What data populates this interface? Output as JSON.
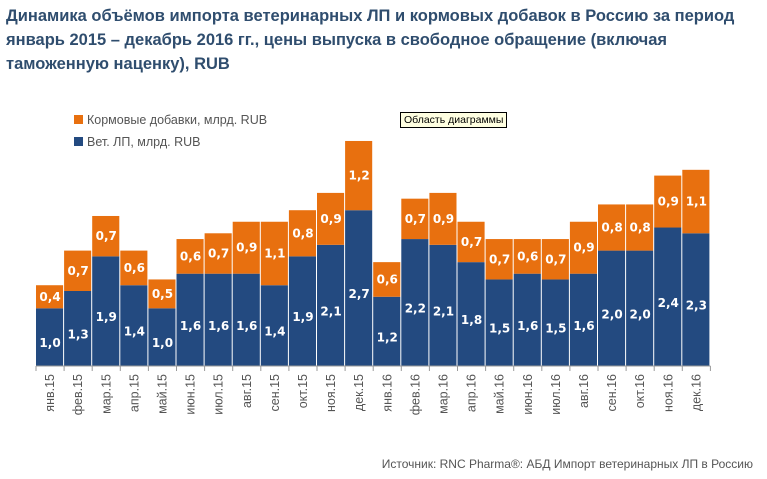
{
  "chart_data": {
    "type": "bar",
    "stacked": true,
    "title": "Динамика объёмов импорта ветеринарных ЛП и кормовых добавок в Россию за период январь 2015 – декабрь 2016 гг., цены выпуска в свободное обращение (включая таможенную наценку), RUB",
    "categories": [
      "янв.15",
      "фев.15",
      "мар.15",
      "апр.15",
      "май.15",
      "июн.15",
      "июл.15",
      "авг.15",
      "сен.15",
      "окт.15",
      "ноя.15",
      "дек.15",
      "янв.16",
      "фев.16",
      "мар.16",
      "апр.16",
      "май.16",
      "июн.16",
      "июл.16",
      "авг.16",
      "сен.16",
      "окт.16",
      "ноя.16",
      "дек.16"
    ],
    "series": [
      {
        "name": "Вет. ЛП, млрд. RUB",
        "color": "#234a80",
        "values": [
          1.0,
          1.3,
          1.9,
          1.4,
          1.0,
          1.6,
          1.6,
          1.6,
          1.4,
          1.9,
          2.1,
          2.7,
          1.2,
          2.2,
          2.1,
          1.8,
          1.5,
          1.6,
          1.5,
          1.6,
          2.0,
          2.0,
          2.4,
          2.3
        ]
      },
      {
        "name": "Кормовые добавки, млрд. RUB",
        "color": "#e8700f",
        "values": [
          0.4,
          0.7,
          0.7,
          0.6,
          0.5,
          0.6,
          0.7,
          0.9,
          1.1,
          0.8,
          0.9,
          1.2,
          0.6,
          0.7,
          0.9,
          0.7,
          0.7,
          0.6,
          0.7,
          0.9,
          0.8,
          0.8,
          0.9,
          1.1
        ]
      }
    ],
    "xlabel": "",
    "ylabel": "",
    "grid": false,
    "legend": "top-left",
    "yaxis_visible": false
  },
  "tooltip": "Область диаграммы",
  "source": "Источник: RNC Pharma®: АБД Импорт ветеринарных ЛП в Россию"
}
